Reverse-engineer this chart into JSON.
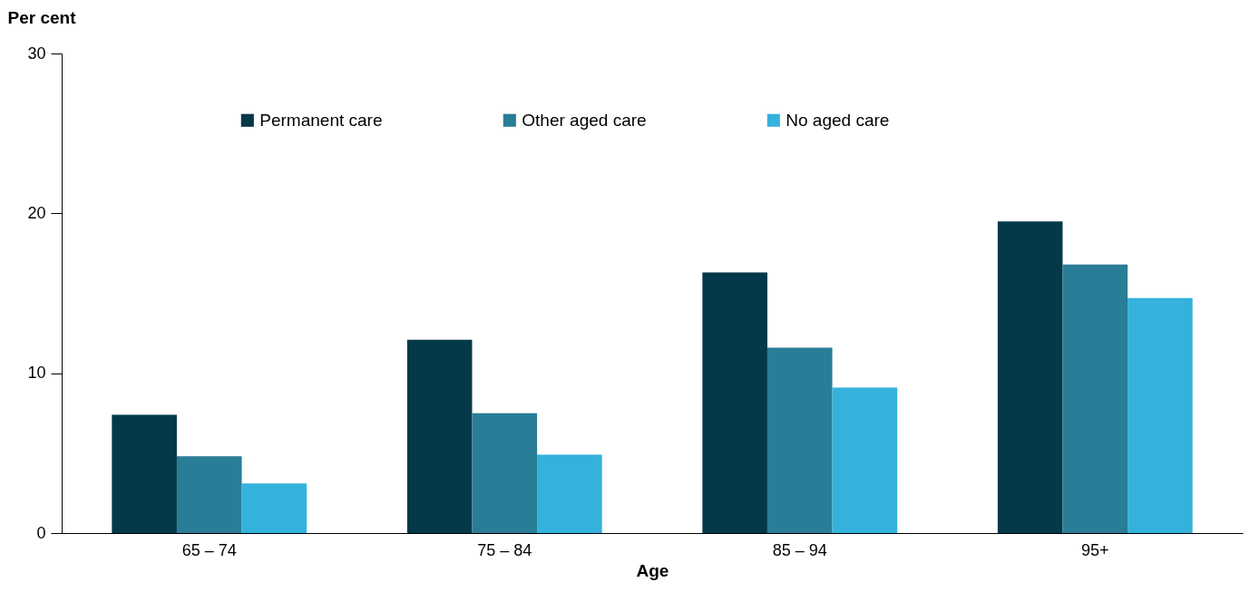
{
  "chart_data": {
    "type": "bar",
    "xlabel": "Age",
    "ylabel": "Per cent",
    "categories": [
      "65 – 74",
      "75 – 84",
      "85 – 94",
      "95+"
    ],
    "series": [
      {
        "name": "Permanent care",
        "color": "#04394a",
        "values": [
          7.4,
          12.1,
          16.3,
          19.5
        ]
      },
      {
        "name": "Other aged care",
        "color": "#2a7d96",
        "values": [
          4.8,
          7.5,
          11.6,
          16.8
        ]
      },
      {
        "name": "No aged care",
        "color": "#34b2dc",
        "values": [
          3.1,
          4.9,
          9.1,
          14.7
        ]
      }
    ],
    "ylim": [
      0,
      30
    ],
    "yticks": [
      0,
      10,
      20,
      30
    ],
    "grid": false,
    "legend": "top"
  }
}
